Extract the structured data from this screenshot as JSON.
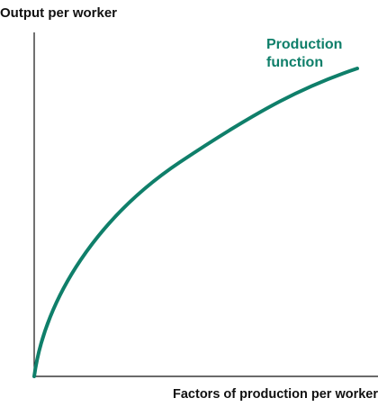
{
  "y_axis_label": "Output per worker",
  "x_axis_label": "Factors of production per worker",
  "curve_label": "Production function"
}
